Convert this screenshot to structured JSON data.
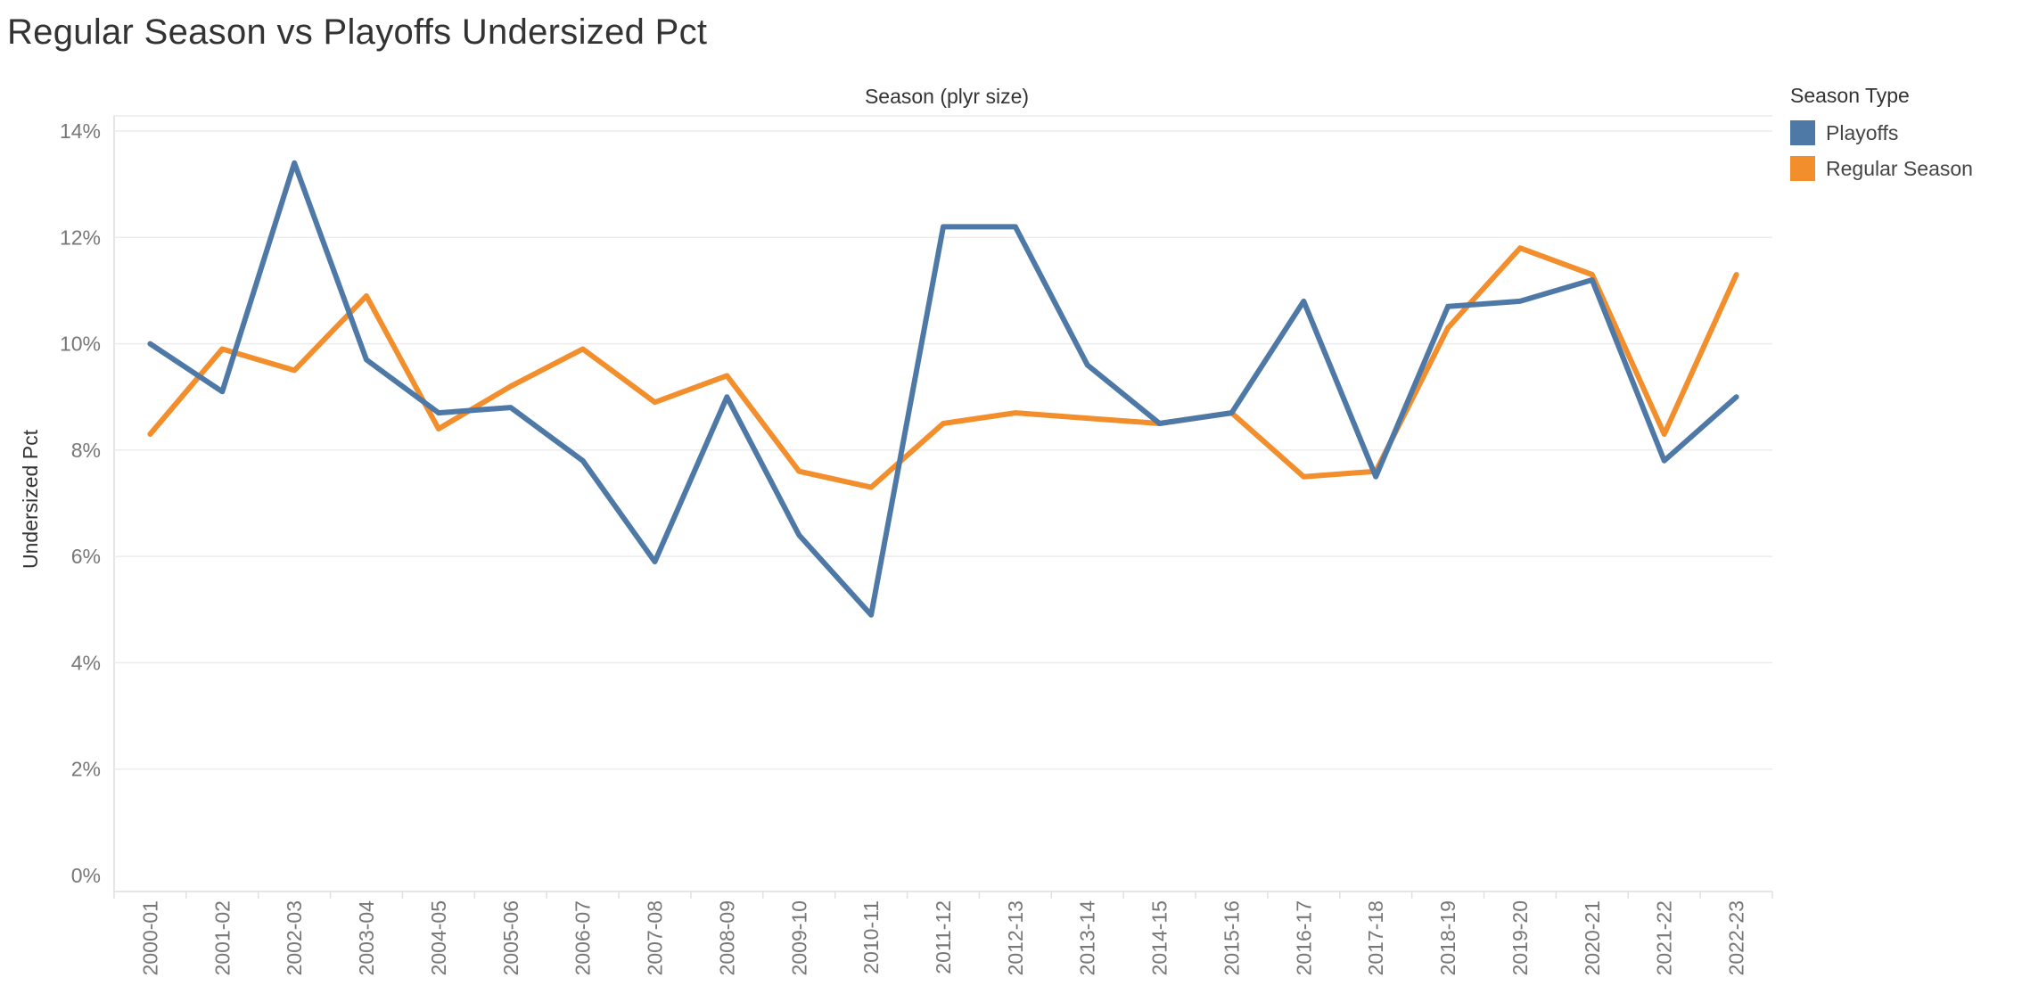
{
  "title": "Regular Season vs Playoffs Undersized Pct",
  "chart_data": {
    "type": "line",
    "title": "Regular Season vs Playoffs Undersized Pct",
    "column_header": "Season (plyr size)",
    "xlabel": "",
    "ylabel": "Undersized Pct",
    "ylim": [
      0,
      14
    ],
    "yticks": [
      "0%",
      "2%",
      "4%",
      "6%",
      "8%",
      "10%",
      "12%",
      "14%"
    ],
    "ytick_values": [
      0,
      2,
      4,
      6,
      8,
      10,
      12,
      14
    ],
    "grid": true,
    "categories": [
      "2000-01",
      "2001-02",
      "2002-03",
      "2003-04",
      "2004-05",
      "2005-06",
      "2006-07",
      "2007-08",
      "2008-09",
      "2009-10",
      "2010-11",
      "2011-12",
      "2012-13",
      "2013-14",
      "2014-15",
      "2015-16",
      "2016-17",
      "2017-18",
      "2018-19",
      "2019-20",
      "2020-21",
      "2021-22",
      "2022-23"
    ],
    "legend": {
      "title": "Season Type",
      "position": "right"
    },
    "series": [
      {
        "name": "Playoffs",
        "color": "#4e79a7",
        "values": [
          10.0,
          9.1,
          13.4,
          9.7,
          8.7,
          8.8,
          7.8,
          5.9,
          9.0,
          6.4,
          4.9,
          12.2,
          12.2,
          9.6,
          8.5,
          8.7,
          10.8,
          7.5,
          10.7,
          10.8,
          11.2,
          7.8,
          9.0
        ]
      },
      {
        "name": "Regular Season",
        "color": "#f28e2b",
        "values": [
          8.3,
          9.9,
          9.5,
          10.9,
          8.4,
          9.2,
          9.9,
          8.9,
          9.4,
          7.6,
          7.3,
          8.5,
          8.7,
          8.6,
          8.5,
          8.7,
          7.5,
          7.6,
          10.3,
          11.8,
          11.3,
          8.3,
          11.3
        ]
      }
    ]
  }
}
